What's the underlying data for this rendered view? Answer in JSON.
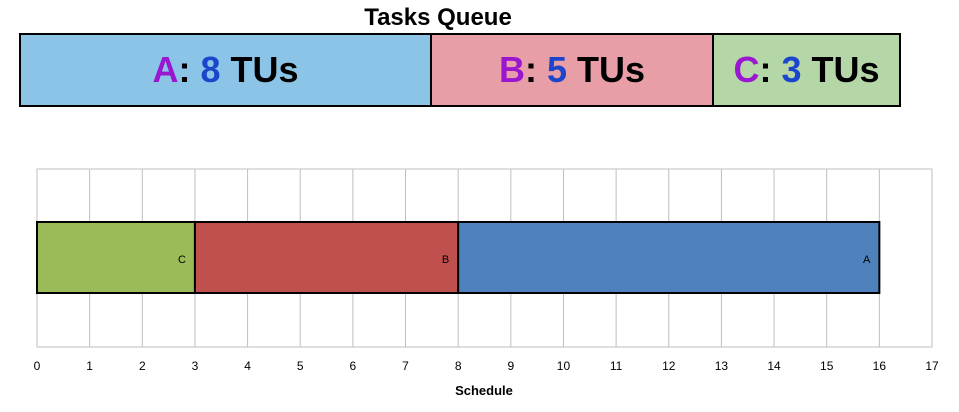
{
  "queue": {
    "title": "Tasks Queue",
    "unit": "TUs",
    "tasks": [
      {
        "name": "A",
        "units": 8,
        "color": "#8cc4e8"
      },
      {
        "name": "B",
        "units": 5,
        "color": "#e89ea6"
      },
      {
        "name": "C",
        "units": 3,
        "color": "#b5d7a8"
      }
    ],
    "name_color": "#9b16d0",
    "number_color": "#1b46cc"
  },
  "chart_data": {
    "type": "bar",
    "orientation": "horizontal-stacked",
    "xlabel": "Schedule",
    "ylabel": "",
    "xlim": [
      0,
      17
    ],
    "xticks": [
      0,
      1,
      2,
      3,
      4,
      5,
      6,
      7,
      8,
      9,
      10,
      11,
      12,
      13,
      14,
      15,
      16,
      17
    ],
    "grid": true,
    "segments": [
      {
        "label": "C",
        "start": 0,
        "end": 3,
        "color": "#9bbb59"
      },
      {
        "label": "B",
        "start": 3,
        "end": 8,
        "color": "#c0504d"
      },
      {
        "label": "A",
        "start": 8,
        "end": 16,
        "color": "#4f81bd"
      }
    ]
  }
}
